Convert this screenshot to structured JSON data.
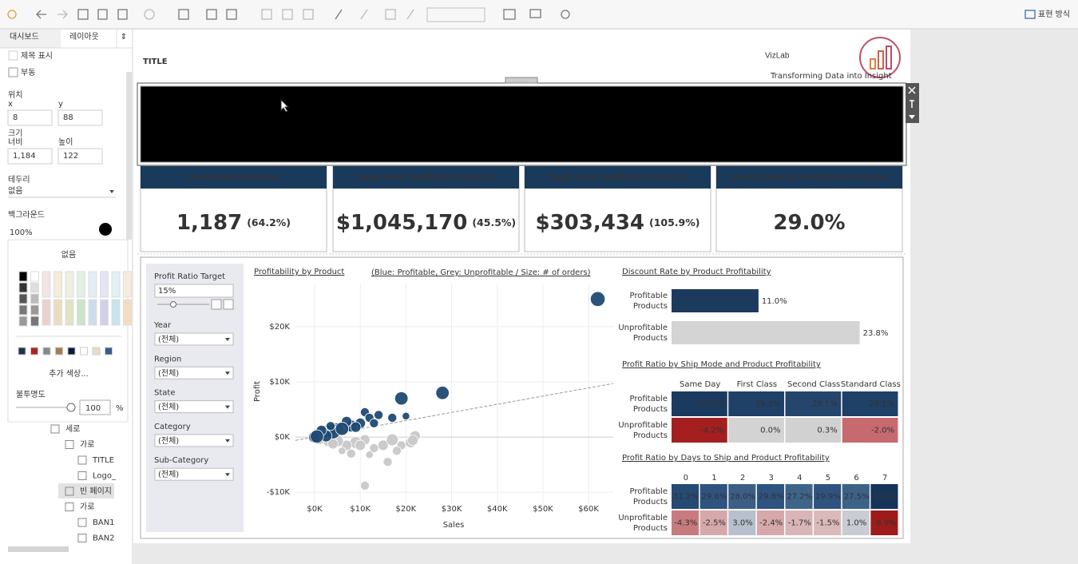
{
  "toolbar": {
    "presentation": "표현 방식"
  },
  "sidebar": {
    "tabs": [
      "대시보드",
      "레이아웃"
    ],
    "show_title": "제목 표시",
    "floating": "부동",
    "position": {
      "label": "위치",
      "x_label": "x",
      "x": "8",
      "y_label": "y",
      "y": "88"
    },
    "size": {
      "label": "크기",
      "width_label": "너비",
      "width": "1,184",
      "height_label": "높이",
      "height": "122"
    },
    "border": {
      "label": "테두리",
      "value": "없음"
    },
    "background": {
      "label": "백그라운드",
      "value": "100%"
    },
    "color_popup": {
      "none": "없음",
      "more": "추가 색상...",
      "opacity_label": "불투명도",
      "opacity": "100",
      "unit": "%"
    },
    "tree": [
      "세로",
      "가로",
      "TITLE",
      "Logo_",
      "빈 페이지",
      "가로",
      "BAN1",
      "BAN2"
    ]
  },
  "dashboard": {
    "title": "TITLE",
    "logo": {
      "name": "VizLab",
      "tagline": "Transforming Data into Insight"
    },
    "kpis": [
      {
        "title": "Profitable Products",
        "value": "1,187",
        "share": "(64.2%)"
      },
      {
        "title": "Sales from Profitable Products",
        "value": "$1,045,170",
        "share": "(45.5%)"
      },
      {
        "title": "Profit from Profitable Products",
        "value": "$303,434",
        "share": "(105.9%)"
      },
      {
        "title": "Profit Ratio of Profitable Products",
        "value": "29.0%"
      }
    ],
    "filters": {
      "target": {
        "label": "Profit Ratio Target",
        "value": "15%"
      },
      "lists": [
        {
          "label": "Year",
          "value": "(전체)"
        },
        {
          "label": "Region",
          "value": "(전체)"
        },
        {
          "label": "State",
          "value": "(전체)"
        },
        {
          "label": "Category",
          "value": "(전체)"
        },
        {
          "label": "Sub-Category",
          "value": "(전체)"
        }
      ]
    },
    "scatter": {
      "type": "scatter",
      "title": "Profitability by Product",
      "subtitle": "(Blue: Profitable, Grey: Unprofitable / Size: # of orders)",
      "x_label": "Sales",
      "y_label": "Profit",
      "xlim": [
        -4200,
        65400
      ],
      "ylim": [
        -12000,
        27800
      ],
      "xticks": [
        {
          "value": 0,
          "label": "$0K"
        },
        {
          "value": 10000,
          "label": "$10K"
        },
        {
          "value": 20000,
          "label": "$20K"
        },
        {
          "value": 30000,
          "label": "$30K"
        },
        {
          "value": 40000,
          "label": "$40K"
        },
        {
          "value": 50000,
          "label": "$50K"
        },
        {
          "value": 60000,
          "label": "$60K"
        }
      ],
      "yticks": [
        {
          "value": -10000,
          "label": "-$10K"
        },
        {
          "value": 0,
          "label": "$0K"
        },
        {
          "value": 10000,
          "label": "$10K"
        },
        {
          "value": 20000,
          "label": "$20K"
        }
      ],
      "grid": true,
      "trend_line": {
        "x": [
          -4200,
          65400
        ],
        "y": [
          -600,
          9700
        ]
      },
      "series": [
        {
          "color": "#1f4a73",
          "points": [
            {
              "x": 62000,
              "y": 25000,
              "size": 8
            },
            {
              "x": 28000,
              "y": 8000,
              "size": 7
            },
            {
              "x": 19000,
              "y": 7000,
              "size": 7
            },
            {
              "x": 17000,
              "y": 3500,
              "size": 4
            },
            {
              "x": 14000,
              "y": 4000,
              "size": 4
            },
            {
              "x": 11000,
              "y": 4500,
              "size": 4
            },
            {
              "x": 12000,
              "y": 3500,
              "size": 4
            },
            {
              "x": 10000,
              "y": 2500,
              "size": 5
            },
            {
              "x": 8000,
              "y": 2000,
              "size": 6
            },
            {
              "x": 7000,
              "y": 2800,
              "size": 5
            },
            {
              "x": 5000,
              "y": 1500,
              "size": 6
            },
            {
              "x": 3000,
              "y": 1000,
              "size": 7
            },
            {
              "x": 2000,
              "y": 800,
              "size": 6
            },
            {
              "x": 1000,
              "y": 500,
              "size": 5
            },
            {
              "x": 0,
              "y": 0,
              "size": 6
            },
            {
              "x": 4000,
              "y": 1000,
              "size": 8
            },
            {
              "x": 6000,
              "y": 1500,
              "size": 7
            },
            {
              "x": 9000,
              "y": 1800,
              "size": 5
            },
            {
              "x": 2500,
              "y": 200,
              "size": 6
            },
            {
              "x": 13000,
              "y": 2500,
              "size": 4
            },
            {
              "x": 1500,
              "y": 1200,
              "size": 5
            },
            {
              "x": 3500,
              "y": 2000,
              "size": 4
            },
            {
              "x": 20000,
              "y": 3800,
              "size": 3
            },
            {
              "x": 500,
              "y": 100,
              "size": 7
            }
          ]
        },
        {
          "color": "#c8c8c8",
          "points": [
            {
              "x": 11000,
              "y": -500,
              "size": 5
            },
            {
              "x": 9000,
              "y": -1000,
              "size": 6
            },
            {
              "x": 7000,
              "y": -1500,
              "size": 5
            },
            {
              "x": 13000,
              "y": -2000,
              "size": 4
            },
            {
              "x": 15000,
              "y": -1500,
              "size": 5
            },
            {
              "x": 17000,
              "y": -500,
              "size": 6
            },
            {
              "x": 19000,
              "y": -1500,
              "size": 4
            },
            {
              "x": 21000,
              "y": -1000,
              "size": 5
            },
            {
              "x": 16000,
              "y": -4500,
              "size": 4
            },
            {
              "x": 6000,
              "y": -2500,
              "size": 3
            },
            {
              "x": 8000,
              "y": -3000,
              "size": 4
            },
            {
              "x": 11000,
              "y": -8800,
              "size": 4
            },
            {
              "x": 3000,
              "y": -800,
              "size": 5
            },
            {
              "x": 1000,
              "y": -300,
              "size": 6
            },
            {
              "x": 5000,
              "y": -700,
              "size": 6
            },
            {
              "x": 10000,
              "y": -1500,
              "size": 5
            },
            {
              "x": 22000,
              "y": 200,
              "size": 5
            },
            {
              "x": 18000,
              "y": -2500,
              "size": 4
            },
            {
              "x": 21500,
              "y": -600,
              "size": 5
            },
            {
              "x": 12000,
              "y": -3200,
              "size": 3
            },
            {
              "x": 4000,
              "y": -1200,
              "size": 5
            }
          ]
        }
      ]
    },
    "discount": {
      "type": "bar",
      "title": "Discount Rate by Product Profitability",
      "categories": [
        [
          "Profitable",
          "Products"
        ],
        [
          "Unprofitable",
          "Products"
        ]
      ],
      "values": [
        11.0,
        23.8
      ],
      "value_labels": [
        "11.0%",
        "23.8%"
      ],
      "colors": [
        "#1b3a5e",
        "#d4d4d4"
      ]
    },
    "ship_mode": {
      "type": "heatmap",
      "title": "Profit Ratio by Ship Mode and Product Profitability",
      "columns": [
        "Same Day",
        "First Class",
        "Second Class",
        "Standard Class"
      ],
      "rows": [
        [
          "Profitable",
          "Products"
        ],
        [
          "Unprofitable",
          "Products"
        ]
      ],
      "values": [
        [
          30.6,
          29.3,
          28.1,
          29.1
        ],
        [
          -4.2,
          0.0,
          0.3,
          -2.0
        ]
      ],
      "value_labels": [
        [
          "30.6%",
          "29.3%",
          "28.1%",
          "29.1%"
        ],
        [
          "-4.2%",
          "0.0%",
          "0.3%",
          "-2.0%"
        ]
      ],
      "colors": [
        [
          "#1b3a60",
          "#1f4067",
          "#24466d",
          "#1f4067"
        ],
        [
          "#a41f1f",
          "#d3d3d3",
          "#d1d1d1",
          "#c76a70"
        ]
      ]
    },
    "days": {
      "type": "heatmap",
      "title": "Profit Ratio by Days to Ship and Product Profitability",
      "columns": [
        "0",
        "1",
        "2",
        "3",
        "4",
        "5",
        "6",
        "7"
      ],
      "rows": [
        [
          "Profitable",
          "Products"
        ],
        [
          "Unprofitable",
          "Products"
        ]
      ],
      "values": [
        [
          31.2,
          29.6,
          28.0,
          29.8,
          27.2,
          29.9,
          27.5,
          34.8
        ],
        [
          -4.3,
          -2.5,
          3.0,
          -2.4,
          -1.7,
          -1.5,
          1.0,
          -8.9
        ]
      ],
      "value_labels": [
        [
          "31.2%",
          "29.6%",
          "28.0%",
          "29.8%",
          "27.2%",
          "29.9%",
          "27.5%",
          "34.8%"
        ],
        [
          "-4.3%",
          "-2.5%",
          "3.0%",
          "-2.4%",
          "-1.7%",
          "-1.5%",
          "1.0%",
          "-8.9%"
        ]
      ],
      "colors": [
        [
          "#254a73",
          "#2e5380",
          "#3b5e86",
          "#2e5380",
          "#3f6489",
          "#2e5380",
          "#3d6287",
          "#163459"
        ],
        [
          "#c77b7f",
          "#d6a8aa",
          "#b7c0cc",
          "#d6a8aa",
          "#d9b5b7",
          "#dab9ba",
          "#c9cdd3",
          "#9d1b1b"
        ]
      ]
    }
  }
}
